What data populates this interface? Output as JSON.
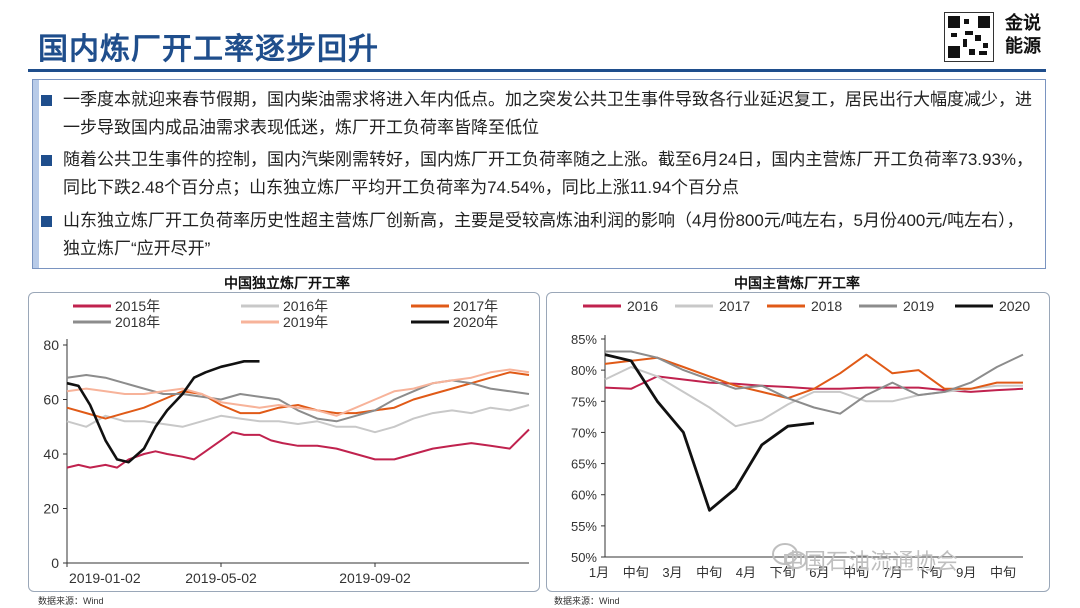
{
  "header": {
    "title": "国内炼厂开工率逐步回升",
    "brand_line1": "金说",
    "brand_line2": "能源"
  },
  "bullets": [
    "一季度本就迎来春节假期，国内柴油需求将进入年内低点。加之突发公共卫生事件导致各行业延迟复工，居民出行大幅度减少，进一步导致国内成品油需求表现低迷，炼厂开工负荷率皆降至低位",
    "随着公共卫生事件的控制，国内汽柴刚需转好，国内炼厂开工负荷率随之上涨。截至6月24日，国内主营炼厂开工负荷率73.93%，同比下跌2.48个百分点；山东独立炼厂平均开工负荷率为74.54%，同比上涨11.94个百分点",
    "山东独立炼厂开工负荷率历史性超主营炼厂创新高，主要是受较高炼油利润的影响（4月份800元/吨左右，5月份400元/吨左右），独立炼厂“应开尽开”"
  ],
  "source_left": "数据来源：Wind",
  "source_right": "数据来源：Wind",
  "watermark": "中国石油流通协会",
  "colors": {
    "accent": "#1f4e8c",
    "s2015": "#c0224e",
    "s2016": "#c8c8c8",
    "s2017": "#e05a17",
    "s2018": "#8c8c8c",
    "s2019": "#f7b39a",
    "s2020": "#111111"
  },
  "chart_data": [
    {
      "type": "line",
      "title": "中国独立炼厂开工率",
      "xlabel": "",
      "ylabel": "",
      "x_tick_labels": [
        "2019-01-02",
        "2019-05-02",
        "2019-09-02"
      ],
      "x_ticks_at": [
        0,
        4,
        8
      ],
      "xlim": [
        0,
        12
      ],
      "ylim": [
        0,
        80
      ],
      "y_ticks": [
        0,
        20,
        40,
        60,
        80
      ],
      "grid": false,
      "legend_position": "top",
      "series": [
        {
          "name": "2015年",
          "x": [
            0,
            0.3,
            0.6,
            1,
            1.3,
            1.6,
            2,
            2.3,
            2.6,
            3,
            3.3,
            3.6,
            4,
            4.3,
            4.6,
            5,
            5.3,
            5.6,
            6,
            6.5,
            7,
            7.5,
            8,
            8.5,
            9,
            9.5,
            10,
            10.5,
            11,
            11.5,
            12
          ],
          "y": [
            35,
            36,
            35,
            36,
            35,
            38,
            40,
            41,
            40,
            39,
            38,
            41,
            45,
            48,
            47,
            47,
            45,
            44,
            43,
            43,
            42,
            40,
            38,
            38,
            40,
            42,
            43,
            44,
            43,
            42,
            49
          ]
        },
        {
          "name": "2016年",
          "x": [
            0,
            0.5,
            1,
            1.5,
            2,
            2.5,
            3,
            3.5,
            4,
            4.5,
            5,
            5.5,
            6,
            6.5,
            7,
            7.5,
            8,
            8.5,
            9,
            9.5,
            10,
            10.5,
            11,
            11.5,
            12
          ],
          "y": [
            52,
            50,
            54,
            52,
            52,
            51,
            50,
            52,
            54,
            53,
            52,
            52,
            51,
            52,
            50,
            50,
            48,
            50,
            53,
            55,
            56,
            55,
            57,
            56,
            58
          ]
        },
        {
          "name": "2017年",
          "x": [
            0,
            0.5,
            1,
            1.5,
            2,
            2.5,
            3,
            3.5,
            4,
            4.5,
            5,
            5.5,
            6,
            6.5,
            7,
            7.5,
            8,
            8.5,
            9,
            9.5,
            10,
            10.5,
            11,
            11.5,
            12
          ],
          "y": [
            57,
            55,
            53,
            55,
            57,
            60,
            63,
            62,
            58,
            55,
            55,
            57,
            58,
            56,
            55,
            55,
            56,
            57,
            60,
            62,
            64,
            66,
            68,
            70,
            69
          ]
        },
        {
          "name": "2018年",
          "x": [
            0,
            0.5,
            1,
            1.5,
            2,
            2.5,
            3,
            3.5,
            4,
            4.5,
            5,
            5.5,
            6,
            6.5,
            7,
            7.5,
            8,
            8.5,
            9,
            9.5,
            10,
            10.5,
            11,
            11.5,
            12
          ],
          "y": [
            68,
            69,
            68,
            66,
            64,
            62,
            62,
            61,
            60,
            62,
            61,
            60,
            56,
            53,
            52,
            54,
            56,
            60,
            63,
            66,
            67,
            66,
            64,
            63,
            62
          ]
        },
        {
          "name": "2019年",
          "x": [
            0,
            0.5,
            1,
            1.5,
            2,
            2.5,
            3,
            3.5,
            4,
            4.5,
            5,
            5.5,
            6,
            6.5,
            7,
            7.5,
            8,
            8.5,
            9,
            9.5,
            10,
            10.5,
            11,
            11.5,
            12
          ],
          "y": [
            63,
            64,
            63,
            62,
            62,
            63,
            64,
            62,
            59,
            58,
            57,
            58,
            57,
            56,
            54,
            57,
            60,
            63,
            64,
            66,
            67,
            68,
            70,
            71,
            70
          ]
        },
        {
          "name": "2020年",
          "x": [
            0,
            0.3,
            0.6,
            1,
            1.3,
            1.6,
            2,
            2.3,
            2.6,
            3,
            3.3,
            3.6,
            4,
            4.3,
            4.6,
            5
          ],
          "y": [
            66,
            65,
            58,
            45,
            38,
            37,
            42,
            50,
            56,
            62,
            68,
            70,
            72,
            73,
            74,
            74
          ]
        }
      ]
    },
    {
      "type": "line",
      "title": "中国主营炼厂开工率",
      "xlabel": "",
      "ylabel": "",
      "x_tick_labels": [
        "1月",
        "中旬",
        "3月",
        "中旬",
        "4月",
        "下旬",
        "6月",
        "中旬",
        "7月",
        "下旬",
        "9月",
        "中旬"
      ],
      "ylim": [
        50,
        85
      ],
      "y_ticks": [
        50,
        55,
        60,
        65,
        70,
        75,
        80,
        85
      ],
      "y_tick_labels": [
        "50%",
        "55%",
        "60%",
        "65%",
        "70%",
        "75%",
        "80%",
        "85%"
      ],
      "grid": false,
      "legend_position": "top",
      "series": [
        {
          "name": "2016",
          "values": [
            77.2,
            77.0,
            79.0,
            78.5,
            78.0,
            77.8,
            77.5,
            77.3,
            77.0,
            77.0,
            77.2,
            77.2,
            77.2,
            76.8,
            76.5,
            76.8,
            77.0
          ]
        },
        {
          "name": "2017",
          "values": [
            78.5,
            80.5,
            79.0,
            76.5,
            74.0,
            71.0,
            72.0,
            74.5,
            76.5,
            76.5,
            75.0,
            75.0,
            76.0,
            76.5,
            77.0,
            77.5,
            77.5
          ]
        },
        {
          "name": "2018",
          "values": [
            81.0,
            81.5,
            82.0,
            80.5,
            79.0,
            77.5,
            76.5,
            75.5,
            77.0,
            79.5,
            82.5,
            79.5,
            80.0,
            77.0,
            77.0,
            78.0,
            78.0
          ]
        },
        {
          "name": "2019",
          "values": [
            83.0,
            83.0,
            82.0,
            80.0,
            78.5,
            77.0,
            77.5,
            75.5,
            74.0,
            73.0,
            76.0,
            78.0,
            76.0,
            76.5,
            78.0,
            80.5,
            82.5
          ]
        },
        {
          "name": "2020",
          "values": [
            82.5,
            81.5,
            75.0,
            70.0,
            57.5,
            61.0,
            68.0,
            71.0,
            71.5
          ]
        }
      ]
    }
  ]
}
